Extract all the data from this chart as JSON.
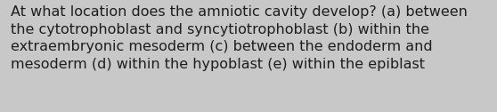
{
  "line1": "At what location does the amniotic cavity develop? (a) between",
  "line2": "the cytotrophoblast and syncytiotrophoblast (b) within the",
  "line3": "extraembryonic mesoderm (c) between the endoderm and",
  "line4": "mesoderm (d) within the hypoblast (e) within the epiblast",
  "background_color": "#c8c8c8",
  "text_color": "#1e1e1e",
  "font_size": 11.5,
  "fig_width": 5.58,
  "fig_height": 1.26,
  "dpi": 100
}
